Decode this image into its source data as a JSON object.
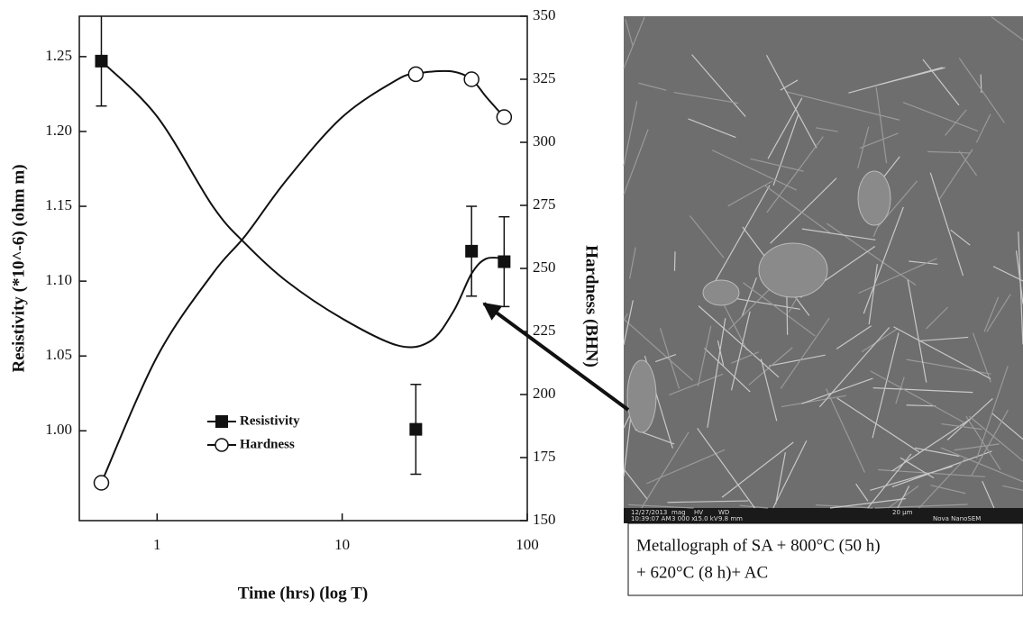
{
  "chart_data": {
    "type": "line",
    "xlabel": "Time (hrs) (log T)",
    "ylabel": "Resistivity (*10^-6) (ohm m)",
    "y2label": "Hardness (BHN)",
    "xscale": "log",
    "xlim": [
      0.38,
      100
    ],
    "xticks": [
      1,
      10,
      100
    ],
    "ylim": [
      0.94,
      1.277
    ],
    "yticks": [
      {
        "value": 1.0,
        "label": "1.00"
      },
      {
        "value": 1.05,
        "label": "1.05"
      },
      {
        "value": 1.1,
        "label": "1.10"
      },
      {
        "value": 1.15,
        "label": "1.15"
      },
      {
        "value": 1.2,
        "label": "1.20"
      },
      {
        "value": 1.25,
        "label": "1.25"
      }
    ],
    "y2lim": [
      150,
      350
    ],
    "y2ticks": [
      150,
      175,
      200,
      225,
      250,
      275,
      300,
      325,
      350
    ],
    "series": [
      {
        "name": "Resistivity",
        "color": "#111111",
        "marker": "square",
        "axis": "y",
        "x": [
          0.5,
          25,
          50,
          75
        ],
        "values": [
          1.247,
          1.001,
          1.12,
          1.113
        ],
        "errors": [
          0.03,
          0.03,
          0.03,
          0.03
        ],
        "curve": {
          "x": [
            0.5,
            1,
            2,
            3,
            5,
            10,
            20,
            30,
            40,
            50,
            60,
            75
          ],
          "values": [
            1.247,
            1.21,
            1.15,
            1.125,
            1.1,
            1.075,
            1.057,
            1.06,
            1.08,
            1.105,
            1.115,
            1.115
          ]
        }
      },
      {
        "name": "Hardness",
        "color": "#111111",
        "marker": "open-circle",
        "axis": "y2",
        "x": [
          0.5,
          25,
          50,
          75
        ],
        "values": [
          165,
          327,
          325,
          310
        ],
        "curve": {
          "x": [
            0.5,
            1,
            2,
            3,
            5,
            10,
            20,
            25,
            30,
            40,
            50,
            60,
            75
          ],
          "values": [
            165,
            215,
            248,
            263,
            285,
            310,
            325,
            327,
            328,
            328,
            325,
            318,
            310
          ]
        }
      }
    ],
    "image": {
      "info": [
        "12/27/2013",
        "10:39:07 AM",
        "mag",
        "3 000 x",
        "HV",
        "15.0 kV",
        "WD",
        "9.8 mm",
        "20 µm",
        "Nova NanoSEM"
      ],
      "caption": [
        "Metallograph of SA + 800°C (50 h)",
        "+ 620°C (8 h)+ AC"
      ]
    }
  }
}
